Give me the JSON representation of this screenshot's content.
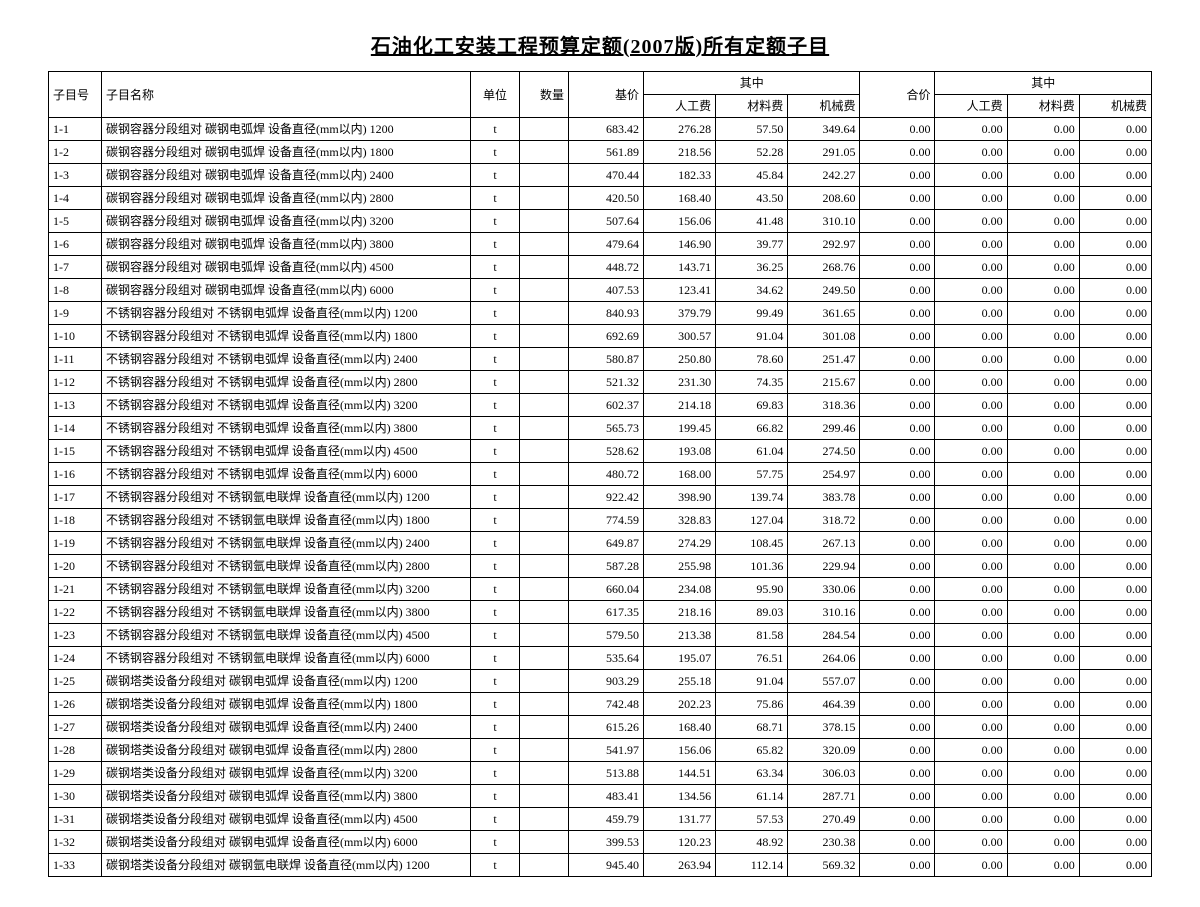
{
  "title": "石油化工安装工程预算定额(2007版)所有定额子目",
  "columns": {
    "id": "子目号",
    "name": "子目名称",
    "unit": "单位",
    "qty": "数量",
    "base": "基价",
    "sub": "其中",
    "labor": "人工费",
    "material": "材料费",
    "machine": "机械费",
    "total": "合价"
  },
  "rows": [
    {
      "id": "1-1",
      "name": "碳钢容器分段组对 碳钢电弧焊 设备直径(mm以内) 1200",
      "unit": "t",
      "base": "683.42",
      "labor": "276.28",
      "material": "57.50",
      "machine": "349.64",
      "total": "0.00",
      "l2": "0.00",
      "m2": "0.00",
      "mc2": "0.00"
    },
    {
      "id": "1-2",
      "name": "碳钢容器分段组对 碳钢电弧焊 设备直径(mm以内) 1800",
      "unit": "t",
      "base": "561.89",
      "labor": "218.56",
      "material": "52.28",
      "machine": "291.05",
      "total": "0.00",
      "l2": "0.00",
      "m2": "0.00",
      "mc2": "0.00"
    },
    {
      "id": "1-3",
      "name": "碳钢容器分段组对 碳钢电弧焊 设备直径(mm以内) 2400",
      "unit": "t",
      "base": "470.44",
      "labor": "182.33",
      "material": "45.84",
      "machine": "242.27",
      "total": "0.00",
      "l2": "0.00",
      "m2": "0.00",
      "mc2": "0.00"
    },
    {
      "id": "1-4",
      "name": "碳钢容器分段组对 碳钢电弧焊 设备直径(mm以内) 2800",
      "unit": "t",
      "base": "420.50",
      "labor": "168.40",
      "material": "43.50",
      "machine": "208.60",
      "total": "0.00",
      "l2": "0.00",
      "m2": "0.00",
      "mc2": "0.00"
    },
    {
      "id": "1-5",
      "name": "碳钢容器分段组对 碳钢电弧焊 设备直径(mm以内) 3200",
      "unit": "t",
      "base": "507.64",
      "labor": "156.06",
      "material": "41.48",
      "machine": "310.10",
      "total": "0.00",
      "l2": "0.00",
      "m2": "0.00",
      "mc2": "0.00"
    },
    {
      "id": "1-6",
      "name": "碳钢容器分段组对 碳钢电弧焊 设备直径(mm以内) 3800",
      "unit": "t",
      "base": "479.64",
      "labor": "146.90",
      "material": "39.77",
      "machine": "292.97",
      "total": "0.00",
      "l2": "0.00",
      "m2": "0.00",
      "mc2": "0.00"
    },
    {
      "id": "1-7",
      "name": "碳钢容器分段组对 碳钢电弧焊 设备直径(mm以内) 4500",
      "unit": "t",
      "base": "448.72",
      "labor": "143.71",
      "material": "36.25",
      "machine": "268.76",
      "total": "0.00",
      "l2": "0.00",
      "m2": "0.00",
      "mc2": "0.00"
    },
    {
      "id": "1-8",
      "name": "碳钢容器分段组对 碳钢电弧焊 设备直径(mm以内) 6000",
      "unit": "t",
      "base": "407.53",
      "labor": "123.41",
      "material": "34.62",
      "machine": "249.50",
      "total": "0.00",
      "l2": "0.00",
      "m2": "0.00",
      "mc2": "0.00"
    },
    {
      "id": "1-9",
      "name": "不锈钢容器分段组对 不锈钢电弧焊 设备直径(mm以内) 1200",
      "unit": "t",
      "base": "840.93",
      "labor": "379.79",
      "material": "99.49",
      "machine": "361.65",
      "total": "0.00",
      "l2": "0.00",
      "m2": "0.00",
      "mc2": "0.00"
    },
    {
      "id": "1-10",
      "name": "不锈钢容器分段组对 不锈钢电弧焊 设备直径(mm以内) 1800",
      "unit": "t",
      "base": "692.69",
      "labor": "300.57",
      "material": "91.04",
      "machine": "301.08",
      "total": "0.00",
      "l2": "0.00",
      "m2": "0.00",
      "mc2": "0.00"
    },
    {
      "id": "1-11",
      "name": "不锈钢容器分段组对 不锈钢电弧焊 设备直径(mm以内) 2400",
      "unit": "t",
      "base": "580.87",
      "labor": "250.80",
      "material": "78.60",
      "machine": "251.47",
      "total": "0.00",
      "l2": "0.00",
      "m2": "0.00",
      "mc2": "0.00"
    },
    {
      "id": "1-12",
      "name": "不锈钢容器分段组对 不锈钢电弧焊 设备直径(mm以内) 2800",
      "unit": "t",
      "base": "521.32",
      "labor": "231.30",
      "material": "74.35",
      "machine": "215.67",
      "total": "0.00",
      "l2": "0.00",
      "m2": "0.00",
      "mc2": "0.00"
    },
    {
      "id": "1-13",
      "name": "不锈钢容器分段组对 不锈钢电弧焊 设备直径(mm以内) 3200",
      "unit": "t",
      "base": "602.37",
      "labor": "214.18",
      "material": "69.83",
      "machine": "318.36",
      "total": "0.00",
      "l2": "0.00",
      "m2": "0.00",
      "mc2": "0.00"
    },
    {
      "id": "1-14",
      "name": "不锈钢容器分段组对 不锈钢电弧焊 设备直径(mm以内) 3800",
      "unit": "t",
      "base": "565.73",
      "labor": "199.45",
      "material": "66.82",
      "machine": "299.46",
      "total": "0.00",
      "l2": "0.00",
      "m2": "0.00",
      "mc2": "0.00"
    },
    {
      "id": "1-15",
      "name": "不锈钢容器分段组对 不锈钢电弧焊 设备直径(mm以内) 4500",
      "unit": "t",
      "base": "528.62",
      "labor": "193.08",
      "material": "61.04",
      "machine": "274.50",
      "total": "0.00",
      "l2": "0.00",
      "m2": "0.00",
      "mc2": "0.00"
    },
    {
      "id": "1-16",
      "name": "不锈钢容器分段组对 不锈钢电弧焊 设备直径(mm以内) 6000",
      "unit": "t",
      "base": "480.72",
      "labor": "168.00",
      "material": "57.75",
      "machine": "254.97",
      "total": "0.00",
      "l2": "0.00",
      "m2": "0.00",
      "mc2": "0.00"
    },
    {
      "id": "1-17",
      "name": "不锈钢容器分段组对 不锈钢氩电联焊 设备直径(mm以内) 1200",
      "unit": "t",
      "base": "922.42",
      "labor": "398.90",
      "material": "139.74",
      "machine": "383.78",
      "total": "0.00",
      "l2": "0.00",
      "m2": "0.00",
      "mc2": "0.00"
    },
    {
      "id": "1-18",
      "name": "不锈钢容器分段组对 不锈钢氩电联焊 设备直径(mm以内) 1800",
      "unit": "t",
      "base": "774.59",
      "labor": "328.83",
      "material": "127.04",
      "machine": "318.72",
      "total": "0.00",
      "l2": "0.00",
      "m2": "0.00",
      "mc2": "0.00"
    },
    {
      "id": "1-19",
      "name": "不锈钢容器分段组对 不锈钢氩电联焊 设备直径(mm以内) 2400",
      "unit": "t",
      "base": "649.87",
      "labor": "274.29",
      "material": "108.45",
      "machine": "267.13",
      "total": "0.00",
      "l2": "0.00",
      "m2": "0.00",
      "mc2": "0.00"
    },
    {
      "id": "1-20",
      "name": "不锈钢容器分段组对 不锈钢氩电联焊 设备直径(mm以内) 2800",
      "unit": "t",
      "base": "587.28",
      "labor": "255.98",
      "material": "101.36",
      "machine": "229.94",
      "total": "0.00",
      "l2": "0.00",
      "m2": "0.00",
      "mc2": "0.00"
    },
    {
      "id": "1-21",
      "name": "不锈钢容器分段组对 不锈钢氩电联焊 设备直径(mm以内) 3200",
      "unit": "t",
      "base": "660.04",
      "labor": "234.08",
      "material": "95.90",
      "machine": "330.06",
      "total": "0.00",
      "l2": "0.00",
      "m2": "0.00",
      "mc2": "0.00"
    },
    {
      "id": "1-22",
      "name": "不锈钢容器分段组对 不锈钢氩电联焊 设备直径(mm以内) 3800",
      "unit": "t",
      "base": "617.35",
      "labor": "218.16",
      "material": "89.03",
      "machine": "310.16",
      "total": "0.00",
      "l2": "0.00",
      "m2": "0.00",
      "mc2": "0.00"
    },
    {
      "id": "1-23",
      "name": "不锈钢容器分段组对 不锈钢氩电联焊 设备直径(mm以内) 4500",
      "unit": "t",
      "base": "579.50",
      "labor": "213.38",
      "material": "81.58",
      "machine": "284.54",
      "total": "0.00",
      "l2": "0.00",
      "m2": "0.00",
      "mc2": "0.00"
    },
    {
      "id": "1-24",
      "name": "不锈钢容器分段组对 不锈钢氩电联焊 设备直径(mm以内) 6000",
      "unit": "t",
      "base": "535.64",
      "labor": "195.07",
      "material": "76.51",
      "machine": "264.06",
      "total": "0.00",
      "l2": "0.00",
      "m2": "0.00",
      "mc2": "0.00"
    },
    {
      "id": "1-25",
      "name": "碳钢塔类设备分段组对 碳钢电弧焊 设备直径(mm以内) 1200",
      "unit": "t",
      "base": "903.29",
      "labor": "255.18",
      "material": "91.04",
      "machine": "557.07",
      "total": "0.00",
      "l2": "0.00",
      "m2": "0.00",
      "mc2": "0.00"
    },
    {
      "id": "1-26",
      "name": "碳钢塔类设备分段组对 碳钢电弧焊 设备直径(mm以内) 1800",
      "unit": "t",
      "base": "742.48",
      "labor": "202.23",
      "material": "75.86",
      "machine": "464.39",
      "total": "0.00",
      "l2": "0.00",
      "m2": "0.00",
      "mc2": "0.00"
    },
    {
      "id": "1-27",
      "name": "碳钢塔类设备分段组对 碳钢电弧焊 设备直径(mm以内) 2400",
      "unit": "t",
      "base": "615.26",
      "labor": "168.40",
      "material": "68.71",
      "machine": "378.15",
      "total": "0.00",
      "l2": "0.00",
      "m2": "0.00",
      "mc2": "0.00"
    },
    {
      "id": "1-28",
      "name": "碳钢塔类设备分段组对 碳钢电弧焊 设备直径(mm以内) 2800",
      "unit": "t",
      "base": "541.97",
      "labor": "156.06",
      "material": "65.82",
      "machine": "320.09",
      "total": "0.00",
      "l2": "0.00",
      "m2": "0.00",
      "mc2": "0.00"
    },
    {
      "id": "1-29",
      "name": "碳钢塔类设备分段组对 碳钢电弧焊 设备直径(mm以内) 3200",
      "unit": "t",
      "base": "513.88",
      "labor": "144.51",
      "material": "63.34",
      "machine": "306.03",
      "total": "0.00",
      "l2": "0.00",
      "m2": "0.00",
      "mc2": "0.00"
    },
    {
      "id": "1-30",
      "name": "碳钢塔类设备分段组对 碳钢电弧焊 设备直径(mm以内) 3800",
      "unit": "t",
      "base": "483.41",
      "labor": "134.56",
      "material": "61.14",
      "machine": "287.71",
      "total": "0.00",
      "l2": "0.00",
      "m2": "0.00",
      "mc2": "0.00"
    },
    {
      "id": "1-31",
      "name": "碳钢塔类设备分段组对 碳钢电弧焊 设备直径(mm以内) 4500",
      "unit": "t",
      "base": "459.79",
      "labor": "131.77",
      "material": "57.53",
      "machine": "270.49",
      "total": "0.00",
      "l2": "0.00",
      "m2": "0.00",
      "mc2": "0.00"
    },
    {
      "id": "1-32",
      "name": "碳钢塔类设备分段组对 碳钢电弧焊 设备直径(mm以内) 6000",
      "unit": "t",
      "base": "399.53",
      "labor": "120.23",
      "material": "48.92",
      "machine": "230.38",
      "total": "0.00",
      "l2": "0.00",
      "m2": "0.00",
      "mc2": "0.00"
    },
    {
      "id": "1-33",
      "name": "碳钢塔类设备分段组对 碳钢氩电联焊 设备直径(mm以内) 1200",
      "unit": "t",
      "base": "945.40",
      "labor": "263.94",
      "material": "112.14",
      "machine": "569.32",
      "total": "0.00",
      "l2": "0.00",
      "m2": "0.00",
      "mc2": "0.00"
    }
  ]
}
